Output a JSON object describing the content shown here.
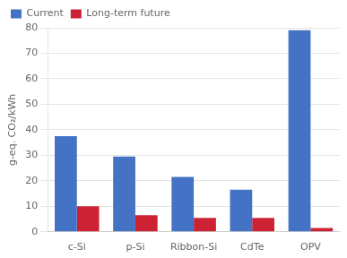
{
  "chart_data": {
    "type": "bar",
    "ylabel": "g-eq. CO₂/kWh",
    "categories": [
      "c-Si",
      "p-Si",
      "Ribbon-Si",
      "CdTe",
      "OPV"
    ],
    "series": [
      {
        "name": "Current",
        "color": "#4472C4",
        "values": [
          37.5,
          29.5,
          21.5,
          16.5,
          79
        ]
      },
      {
        "name": "Long-term future",
        "color": "#CC2233",
        "values": [
          10,
          6.5,
          5.5,
          5.5,
          1.5
        ]
      }
    ],
    "ylim": [
      0,
      80
    ],
    "yticks": [
      0,
      10,
      20,
      30,
      40,
      50,
      60,
      70,
      80
    ],
    "grid": true,
    "legend": "upper left"
  }
}
